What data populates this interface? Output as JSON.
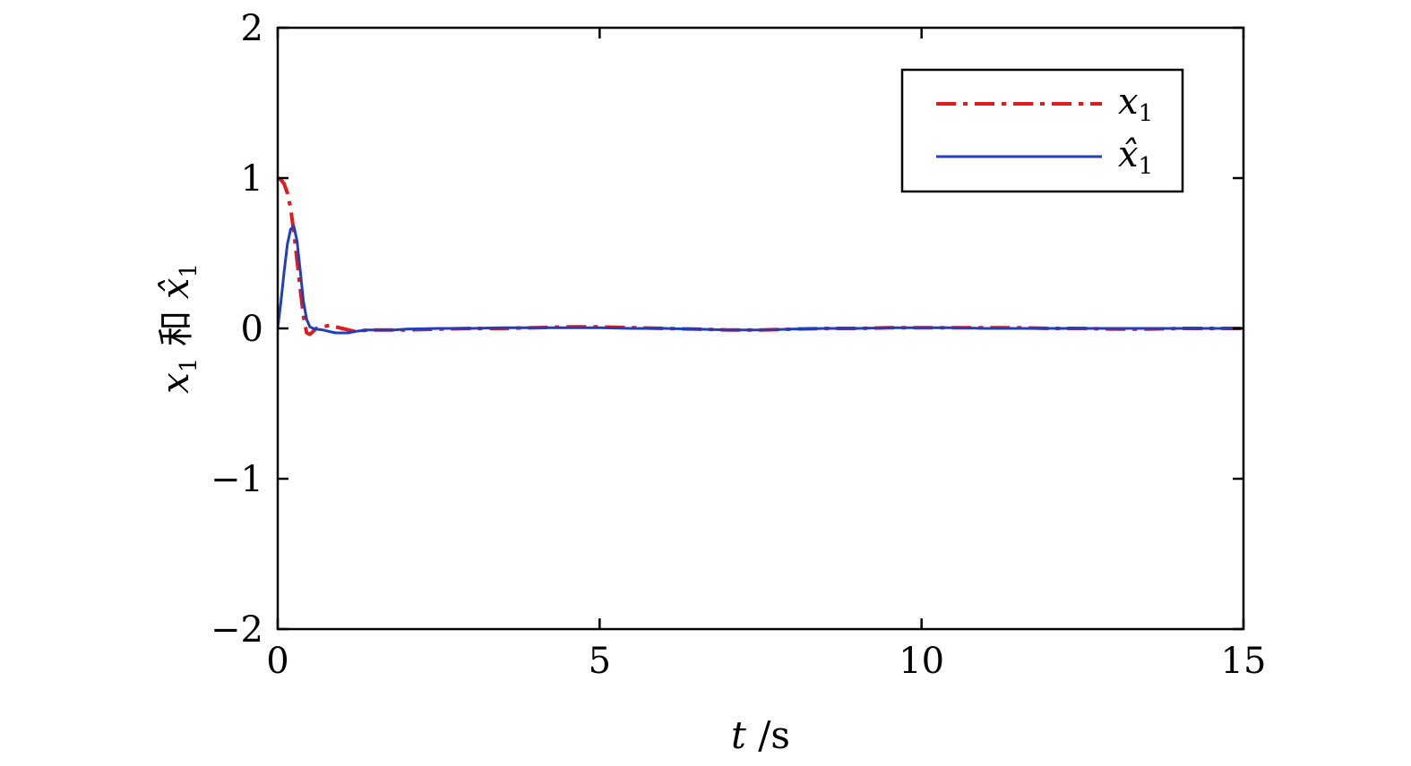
{
  "chart_data": {
    "type": "line",
    "title": "",
    "xlim": [
      0,
      15
    ],
    "ylim": [
      -2,
      2
    ],
    "xticks": [
      0,
      5,
      10,
      15
    ],
    "yticks": [
      -2,
      -1,
      0,
      1,
      2
    ],
    "xtick_labels": [
      "0",
      "5",
      "10",
      "15"
    ],
    "ytick_labels": [
      "−2",
      "−1",
      "0",
      "1",
      "2"
    ],
    "xlabel": {
      "var": "t",
      "unit": " /s"
    },
    "ylabel": {
      "var1": "x",
      "sub1": "1",
      "conj": " 和 ",
      "var2": "x̂",
      "sub2": "1"
    },
    "grid": false,
    "legend_position": "top-right",
    "series": [
      {
        "name": "x1",
        "legend_var": "x",
        "legend_sub": "1",
        "color": "#e31a1c",
        "dash": "dashdot",
        "x": [
          0,
          0.05,
          0.1,
          0.15,
          0.2,
          0.25,
          0.3,
          0.35,
          0.4,
          0.45,
          0.5,
          0.55,
          0.6,
          0.7,
          0.8,
          0.9,
          1.0,
          1.1,
          1.2,
          1.4,
          1.6,
          1.8,
          2.0,
          2.5,
          3.0,
          3.5,
          4.0,
          4.5,
          5.0,
          5.5,
          6.0,
          6.5,
          7.0,
          7.5,
          8.0,
          8.5,
          9.0,
          9.5,
          10.0,
          10.5,
          11.0,
          11.5,
          12.0,
          12.5,
          13.0,
          13.5,
          14.0,
          14.5,
          15.0
        ],
        "y": [
          1.0,
          0.99,
          0.96,
          0.9,
          0.8,
          0.64,
          0.45,
          0.26,
          0.08,
          -0.03,
          -0.04,
          -0.02,
          0.0,
          0.01,
          0.02,
          0.01,
          0.0,
          -0.01,
          -0.02,
          -0.01,
          -0.01,
          -0.01,
          -0.01,
          -0.005,
          0.0,
          0.0,
          0.005,
          0.01,
          0.01,
          0.005,
          0.0,
          -0.005,
          -0.01,
          -0.01,
          -0.005,
          0.0,
          0.0,
          0.005,
          0.005,
          0.005,
          0.005,
          0.005,
          0.0,
          0.0,
          -0.005,
          -0.005,
          0.0,
          0.0,
          0.0
        ]
      },
      {
        "name": "x̂1",
        "legend_var": "x̂",
        "legend_sub": "1",
        "color": "#1f3fbf",
        "dash": "solid",
        "x": [
          0,
          0.05,
          0.1,
          0.15,
          0.2,
          0.25,
          0.3,
          0.35,
          0.4,
          0.45,
          0.5,
          0.55,
          0.6,
          0.7,
          0.8,
          0.9,
          1.0,
          1.1,
          1.2,
          1.4,
          1.6,
          1.8,
          2.0,
          2.5,
          3.0,
          3.5,
          4.0,
          4.5,
          5.0,
          5.5,
          6.0,
          6.5,
          7.0,
          7.5,
          8.0,
          8.5,
          9.0,
          9.5,
          10.0,
          10.5,
          11.0,
          11.5,
          12.0,
          12.5,
          13.0,
          13.5,
          14.0,
          14.5,
          15.0
        ],
        "y": [
          0.0,
          0.18,
          0.38,
          0.56,
          0.66,
          0.68,
          0.58,
          0.38,
          0.18,
          0.06,
          0.01,
          0.0,
          -0.005,
          -0.01,
          -0.02,
          -0.03,
          -0.03,
          -0.03,
          -0.02,
          -0.01,
          -0.01,
          -0.01,
          -0.005,
          0.0,
          0.0,
          0.005,
          0.005,
          0.005,
          0.005,
          0.0,
          0.0,
          -0.005,
          -0.01,
          -0.01,
          -0.005,
          0.0,
          0.0,
          0.005,
          0.005,
          0.005,
          0.0,
          0.0,
          0.0,
          0.0,
          0.0,
          0.0,
          0.0,
          0.0,
          0.0
        ]
      }
    ]
  }
}
